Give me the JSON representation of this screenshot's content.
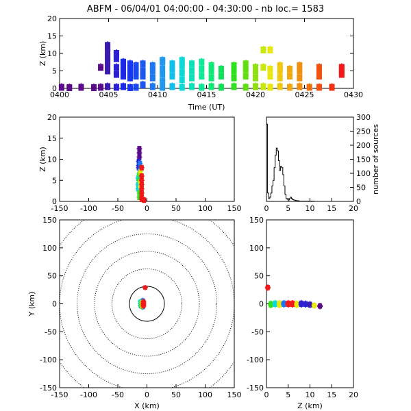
{
  "title": "ABFM - 06/04/01 04:00:00 - 04:30:00 - nb loc.=   1583",
  "panels": {
    "time_z": {
      "xlabel": "Time (UT)",
      "ylabel": "Z (km)",
      "xticks": [
        "0400",
        "0405",
        "0410",
        "0415",
        "0420",
        "0425",
        "0430"
      ],
      "yticks": [
        "0",
        "5",
        "10",
        "15",
        "20"
      ]
    },
    "xz": {
      "ylabel": "Z (km)",
      "xticks": [
        "-150",
        "-100",
        "-50",
        "0",
        "50",
        "100",
        "150"
      ],
      "yticks": [
        "0",
        "5",
        "10",
        "15",
        "20"
      ]
    },
    "hist": {
      "ylabel": "number of sources",
      "xticks": [
        "0",
        "5",
        "10",
        "15",
        "20"
      ],
      "yticks": [
        "0",
        "50",
        "100",
        "150",
        "200",
        "250",
        "300"
      ]
    },
    "xy": {
      "xlabel": "X (km)",
      "ylabel": "Y (km)",
      "xticks": [
        "-150",
        "-100",
        "-50",
        "0",
        "50",
        "100",
        "150"
      ],
      "yticks": [
        "-150",
        "-100",
        "-50",
        "0",
        "50",
        "100",
        "150"
      ]
    },
    "zy": {
      "xlabel": "Z (km)",
      "xticks": [
        "0",
        "5",
        "10",
        "15",
        "20"
      ],
      "yticks": [
        "-150",
        "-100",
        "-50",
        "0",
        "50",
        "100",
        "150"
      ]
    }
  },
  "chart_data": [
    {
      "type": "scatter",
      "panel": "time_z",
      "xlim": [
        0,
        30
      ],
      "ylim": [
        0,
        20
      ],
      "x_unit": "minutes after 04:00 UT",
      "clusters": [
        {
          "t": 0.2,
          "z": [
            0.3
          ],
          "color": "#5a0a8a"
        },
        {
          "t": 1.0,
          "z": [
            0.2
          ],
          "color": "#5a0a8a"
        },
        {
          "t": 2.2,
          "z": [
            0.3
          ],
          "color": "#5a0a8a"
        },
        {
          "t": 3.5,
          "z": [
            0.2
          ],
          "color": "#5a0a8a"
        },
        {
          "t": 4.2,
          "z": [
            0.3,
            6.0
          ],
          "color": "#5a0a8a"
        },
        {
          "t": 4.9,
          "z": [
            0.5,
            5.0,
            6.5,
            8.0,
            9.0,
            10.5,
            11.5,
            12.3
          ],
          "color": "#3a1ab0"
        },
        {
          "t": 5.8,
          "z": [
            0.3,
            4.0,
            6.0,
            8.5,
            9.5,
            10.0
          ],
          "color": "#2a20d0"
        },
        {
          "t": 6.5,
          "z": [
            0.5,
            3.5,
            5.0,
            6.5,
            7.5
          ],
          "color": "#1a28e8"
        },
        {
          "t": 7.2,
          "z": [
            0.2,
            3.0,
            4.5,
            6.0,
            7.0
          ],
          "color": "#1838f0"
        },
        {
          "t": 7.8,
          "z": [
            0.3,
            3.5,
            5.0,
            6.5
          ],
          "color": "#1848f0"
        },
        {
          "t": 8.5,
          "z": [
            1.0,
            3.5,
            5.0,
            7.0
          ],
          "color": "#1c58f0"
        },
        {
          "t": 9.5,
          "z": [
            0.5,
            3.0,
            5.0,
            6.5
          ],
          "color": "#1c78f0"
        },
        {
          "t": 10.5,
          "z": [
            0.3,
            2.0,
            4.0,
            5.5,
            7.5,
            8.0
          ],
          "color": "#2098f0"
        },
        {
          "t": 11.5,
          "z": [
            0.5,
            3.5,
            5.5,
            7.0
          ],
          "color": "#10c0e8"
        },
        {
          "t": 12.5,
          "z": [
            0.3,
            2.5,
            4.5,
            6.5,
            8.0
          ],
          "color": "#10d8d8"
        },
        {
          "t": 13.5,
          "z": [
            0.5,
            3.0,
            5.0,
            7.0
          ],
          "color": "#10e0b8"
        },
        {
          "t": 14.5,
          "z": [
            0.3,
            3.5,
            5.5,
            7.5
          ],
          "color": "#10e898"
        },
        {
          "t": 15.5,
          "z": [
            0.5,
            3.0,
            5.0,
            6.5
          ],
          "color": "#10e878"
        },
        {
          "t": 16.5,
          "z": [
            0.3,
            3.5,
            5.5
          ],
          "color": "#10e058"
        },
        {
          "t": 17.8,
          "z": [
            0.5,
            3.0,
            5.0,
            6.5
          ],
          "color": "#30e020"
        },
        {
          "t": 19.0,
          "z": [
            0.3,
            3.5,
            5.5,
            7.0
          ],
          "color": "#60e010"
        },
        {
          "t": 20.0,
          "z": [
            0.5,
            3.0,
            5.0,
            6.0
          ],
          "color": "#90e010"
        },
        {
          "t": 20.8,
          "z": [
            0.5,
            6.0,
            11.0
          ],
          "color": "#c8e810"
        },
        {
          "t": 21.5,
          "z": [
            0.3,
            3.5,
            5.5,
            11.0
          ],
          "color": "#e8e810"
        },
        {
          "t": 22.5,
          "z": [
            0.5,
            3.0,
            5.0,
            6.5
          ],
          "color": "#f0c810"
        },
        {
          "t": 23.5,
          "z": [
            0.3,
            3.5,
            5.5
          ],
          "color": "#f0a810"
        },
        {
          "t": 24.5,
          "z": [
            0.5,
            3.0,
            5.0,
            6.5
          ],
          "color": "#f09010"
        },
        {
          "t": 25.5,
          "z": [
            0.3
          ],
          "color": "#f07010"
        },
        {
          "t": 26.5,
          "z": [
            0.3,
            3.5,
            5.0,
            6.0
          ],
          "color": "#f05010"
        },
        {
          "t": 27.8,
          "z": [
            0.3
          ],
          "color": "#f03010"
        },
        {
          "t": 28.8,
          "z": [
            4.0,
            5.0,
            6.0
          ],
          "color": "#f01818"
        }
      ]
    },
    {
      "type": "scatter",
      "panel": "xz",
      "xlim": [
        -150,
        150
      ],
      "ylim": [
        0,
        20
      ],
      "clusters": [
        {
          "x": -13,
          "z": [
            12.5,
            11.5,
            10.5
          ],
          "color": "#5a0a8a"
        },
        {
          "x": -14,
          "z": [
            9.5,
            8.5,
            8.0
          ],
          "color": "#2a20d0"
        },
        {
          "x": -12,
          "z": [
            7.5,
            6.5,
            9.0
          ],
          "color": "#1c78f0"
        },
        {
          "x": -15,
          "z": [
            5.5,
            4.0,
            3.0
          ],
          "color": "#10d8d8"
        },
        {
          "x": -13,
          "z": [
            6.5,
            5.0,
            2.0,
            1.0
          ],
          "color": "#30e020"
        },
        {
          "x": -11,
          "z": [
            4.5,
            3.5,
            7.0
          ],
          "color": "#e8e810"
        },
        {
          "x": -9,
          "z": [
            8.0,
            6.0,
            5.0,
            4.0,
            3.0,
            2.0,
            1.0,
            0.5
          ],
          "color": "#f01818"
        },
        {
          "x": -5,
          "z": [
            0.3
          ],
          "color": "#f01818"
        }
      ]
    },
    {
      "type": "line",
      "panel": "hist",
      "xlabel": "Z (km)",
      "ylabel": "number of sources",
      "xlim": [
        0,
        20
      ],
      "ylim": [
        0,
        300
      ],
      "bin_width": 0.25,
      "values": [
        275,
        30,
        10,
        15,
        30,
        55,
        75,
        120,
        165,
        190,
        180,
        145,
        110,
        125,
        120,
        95,
        55,
        25,
        10,
        8,
        5,
        10,
        15,
        10,
        6,
        5,
        4,
        3,
        2,
        2,
        1,
        1,
        1,
        1,
        1,
        1,
        1,
        1,
        1,
        1,
        1,
        1,
        1,
        1,
        0,
        0,
        0,
        0,
        0,
        0,
        0,
        0,
        0,
        0,
        0,
        0,
        0,
        0,
        0,
        0,
        0,
        0,
        0,
        0,
        0,
        0,
        0,
        0,
        0,
        0,
        0,
        0,
        0,
        0,
        0,
        0,
        0,
        0,
        0,
        0
      ]
    },
    {
      "type": "scatter",
      "panel": "xy",
      "xlim": [
        -150,
        150
      ],
      "ylim": [
        -150,
        150
      ],
      "range_rings_km": [
        30,
        60,
        90,
        120,
        150,
        180,
        210
      ],
      "clusters": [
        {
          "x": -8,
          "y": [
            2,
            -2,
            5
          ],
          "color": "#5a0a8a"
        },
        {
          "x": -10,
          "y": [
            0,
            3,
            -4
          ],
          "color": "#2a20d0"
        },
        {
          "x": -7,
          "y": [
            -1,
            6,
            -6
          ],
          "color": "#1c78f0"
        },
        {
          "x": -11,
          "y": [
            1,
            -3,
            4
          ],
          "color": "#10d8d8"
        },
        {
          "x": -9,
          "y": [
            -5,
            2,
            -2
          ],
          "color": "#30e020"
        },
        {
          "x": -8,
          "y": [
            3,
            -4,
            0
          ],
          "color": "#e8e810"
        },
        {
          "x": -6,
          "y": [
            0,
            2,
            -2,
            4,
            -4
          ],
          "color": "#f01818"
        },
        {
          "x": -3,
          "y": [
            29
          ],
          "color": "#f01818"
        }
      ]
    },
    {
      "type": "scatter",
      "panel": "zy",
      "xlim": [
        0,
        20
      ],
      "ylim": [
        -150,
        150
      ],
      "clusters": [
        {
          "z": 0.3,
          "y": [
            30,
            28
          ],
          "color": "#f01818"
        },
        {
          "z": 1.0,
          "y": [
            -1,
            1,
            -3
          ],
          "color": "#30e020"
        },
        {
          "z": 2.0,
          "y": [
            0,
            2,
            -2
          ],
          "color": "#10d8d8"
        },
        {
          "z": 3.0,
          "y": [
            -1,
            1,
            -3,
            2
          ],
          "color": "#e8e810"
        },
        {
          "z": 4.0,
          "y": [
            0,
            2,
            -2,
            1
          ],
          "color": "#1c78f0"
        },
        {
          "z": 5.0,
          "y": [
            0,
            1,
            -2,
            2,
            -1
          ],
          "color": "#f01818"
        },
        {
          "z": 6.0,
          "y": [
            0,
            2,
            -2
          ],
          "color": "#f01818"
        },
        {
          "z": 7.0,
          "y": [
            -1,
            1,
            -3
          ],
          "color": "#e8e810"
        },
        {
          "z": 8.0,
          "y": [
            0,
            2,
            -2
          ],
          "color": "#2a20d0"
        },
        {
          "z": 9.0,
          "y": [
            0,
            -2,
            1
          ],
          "color": "#2a20d0"
        },
        {
          "z": 10.0,
          "y": [
            0,
            -3
          ],
          "color": "#3a1ab0"
        },
        {
          "z": 11.0,
          "y": [
            -2,
            -4
          ],
          "color": "#e8e810"
        },
        {
          "z": 12.3,
          "y": [
            -3,
            -5
          ],
          "color": "#5a0a8a"
        }
      ]
    }
  ]
}
